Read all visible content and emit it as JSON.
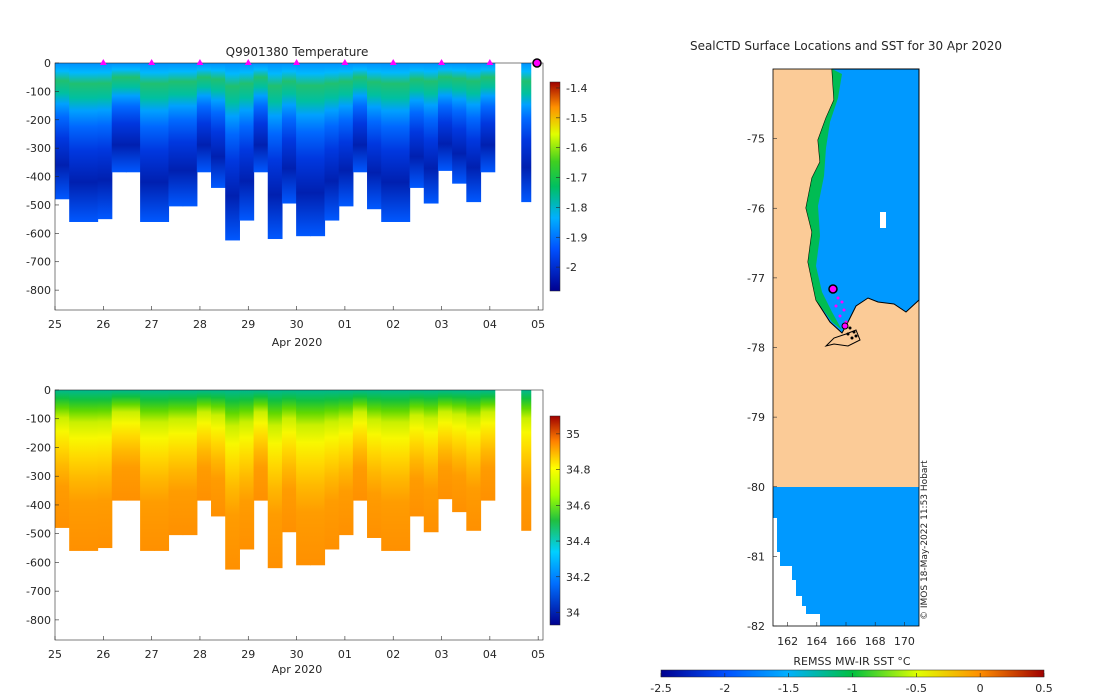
{
  "colors": {
    "land": "#fbcb97",
    "water_sst": "#0099ff",
    "coast": "#000000",
    "marker": "#ff00ff",
    "text": "#262626"
  },
  "chart_data": [
    {
      "type": "heatmap",
      "title": "Q9901380  Temperature",
      "xlabel": "Apr 2020",
      "x_tick_labels": [
        "25",
        "26",
        "27",
        "28",
        "29",
        "30",
        "01",
        "02",
        "03",
        "04",
        "05"
      ],
      "ylim": [
        -870,
        0
      ],
      "y_ticks": [
        0,
        -100,
        -200,
        -300,
        -400,
        -500,
        -600,
        -700,
        -800
      ],
      "colorbar": {
        "ticks": [
          -1.4,
          -1.5,
          -1.6,
          -1.7,
          -1.8,
          -1.9,
          -2
        ],
        "range": [
          -2.08,
          -1.38
        ]
      },
      "profile_markers_day": [
        26,
        27,
        28,
        29,
        30,
        31,
        32,
        33,
        34
      ],
      "profile_depths": [
        480,
        560,
        560,
        550,
        385,
        385,
        560,
        560,
        505,
        505,
        385,
        440,
        625,
        555,
        385,
        620,
        495,
        610,
        610,
        555,
        505,
        385,
        515,
        560,
        560,
        440,
        495,
        380,
        425,
        490,
        385
      ]
    },
    {
      "type": "heatmap",
      "title": "",
      "xlabel": "Apr 2020",
      "x_tick_labels": [
        "25",
        "26",
        "27",
        "28",
        "29",
        "30",
        "01",
        "02",
        "03",
        "04",
        "05"
      ],
      "ylim": [
        -870,
        0
      ],
      "y_ticks": [
        0,
        -100,
        -200,
        -300,
        -400,
        -500,
        -600,
        -700,
        -800
      ],
      "colorbar": {
        "ticks": [
          35,
          34.8,
          34.6,
          34.4,
          34.2,
          34
        ],
        "range": [
          33.93,
          35.1
        ]
      }
    },
    {
      "type": "heatmap",
      "title": "SealCTD Surface Locations and SST for 30 Apr 2020",
      "xlabel": "REMSS MW-IR SST °C",
      "x_ticks": [
        162,
        164,
        166,
        168,
        170
      ],
      "xlim": [
        161,
        171
      ],
      "y_ticks": [
        -75,
        -76,
        -77,
        -78,
        -79,
        -80,
        -81,
        -82
      ],
      "ylim": [
        -82,
        -74
      ],
      "colorbar": {
        "ticks": [
          -2.5,
          -2,
          -1.5,
          -1,
          -0.5,
          0,
          0.5
        ],
        "range": [
          -2.5,
          0.5
        ]
      },
      "credit": "© IMOS 18-May-2022 11:53 Hobart"
    }
  ]
}
